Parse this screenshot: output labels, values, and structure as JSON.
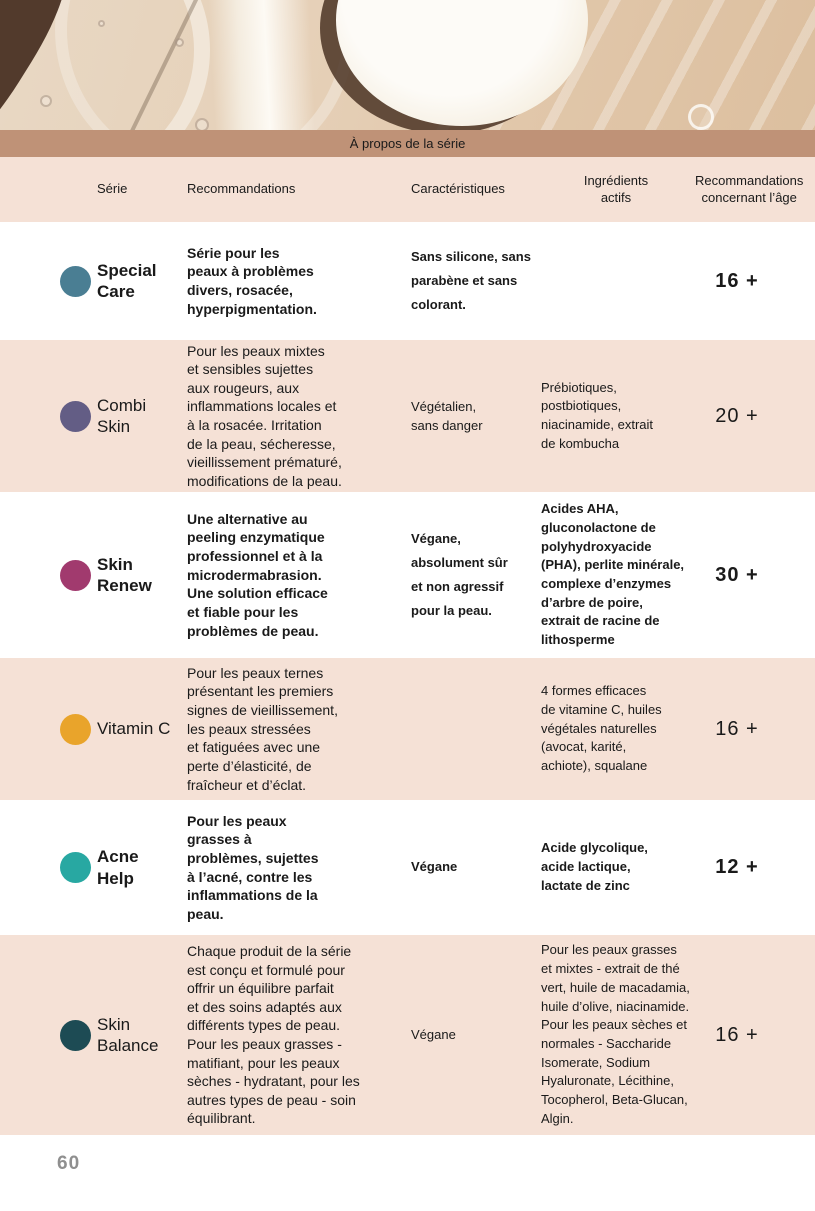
{
  "page": {
    "banner_title": "À propos de la série",
    "number": "60"
  },
  "colors": {
    "banner_bg": "#bf9277",
    "row_alt_bg": "#f5e1d6"
  },
  "table": {
    "columns": [
      "Série",
      "Recommandations",
      "Caractéristiques",
      "Ingrédients\nactifs",
      "Recommandations\nconcernant l’âge"
    ],
    "rows": [
      {
        "name": "Special\nCare",
        "dot_color": "#4a7e93",
        "recommendations": "Série pour les\npeaux à problèmes\ndivers, rosacée,\nhyperpigmentation.",
        "characteristics": "Sans silicone, sans\nparabène et sans\ncolorant.",
        "ingredients": "",
        "age": "16 +"
      },
      {
        "name": "Combi\nSkin",
        "dot_color": "#635d85",
        "recommendations": "Pour les peaux mixtes\net sensibles sujettes\naux rougeurs, aux\ninflammations locales et\nà la rosacée. Irritation\nde la peau, sécheresse,\nvieillissement prématuré,\nmodifications de la peau.",
        "characteristics": "Végétalien,\nsans danger",
        "ingredients": "Prébiotiques,\npostbiotiques,\nniacinamide, extrait\nde kombucha",
        "age": "20 +"
      },
      {
        "name": "Skin\nRenew",
        "dot_color": "#a13a6e",
        "recommendations": "Une alternative au\npeeling enzymatique\nprofessionnel et à la\nmicrodermabrasion.\nUne solution efficace\net fiable pour les\nproblèmes de peau.",
        "characteristics": "Végane,\nabsolument sûr\net non agressif\npour la peau.",
        "ingredients": "Acides AHA,\ngluconolactone de\npolyhydroxyacide\n(PHA), perlite minérale,\ncomplexe d’enzymes\nd’arbre de poire,\nextrait de racine de\nlithosperme",
        "age": "30 +"
      },
      {
        "name": "Vitamin C",
        "dot_color": "#e9a42b",
        "recommendations": "Pour les peaux ternes\nprésentant les premiers\nsignes de vieillissement,\nles peaux stressées\net fatiguées avec une\nperte d’élasticité, de\nfraîcheur et d’éclat.",
        "characteristics": "",
        "ingredients": "4 formes efficaces\nde vitamine C, huiles\nvégétales naturelles\n(avocat, karité,\nachiote), squalane",
        "age": "16 +"
      },
      {
        "name": "Acne\nHelp",
        "dot_color": "#28a8a2",
        "recommendations": "Pour les peaux\ngrasses à\nproblèmes, sujettes\nà l’acné, contre les\ninflammations de la\npeau.",
        "characteristics": "Végane",
        "ingredients": "Acide glycolique,\nacide lactique,\nlactate de zinc",
        "age": "12 +"
      },
      {
        "name": "Skin\nBalance",
        "dot_color": "#1d4b54",
        "recommendations": "Chaque produit de la série\nest conçu et formulé pour\noffrir un équilibre parfait\net des soins adaptés aux\ndifférents types de peau.\nPour les peaux grasses -\nmatifiant, pour les peaux\nsèches - hydratant, pour les\nautres types de peau - soin\néquilibrant.",
        "characteristics": "Végane",
        "ingredients": "Pour les peaux grasses\net mixtes - extrait de thé\nvert, huile de macadamia,\nhuile d’olive, niacinamide.\nPour les peaux sèches et\nnormales - Saccharide\nIsomerate, Sodium\nHyaluronate, Lécithine,\nTocopherol, Beta-Glucan,\nAlgin.",
        "age": "16 +"
      }
    ]
  }
}
